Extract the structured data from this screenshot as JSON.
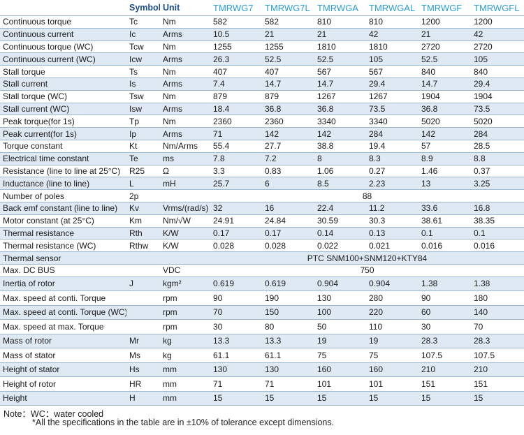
{
  "header": {
    "blank": "",
    "symbol": "Symbol",
    "unit": "Unit",
    "models": [
      "TMRWG7",
      "TMRWG7L",
      "TMRWGA",
      "TMRWGAL",
      "TMRWGF",
      "TMRWGFL"
    ]
  },
  "rows": [
    {
      "name": "Continuous torque",
      "symbol": "Tc",
      "unit": "Nm",
      "values": [
        "582",
        "582",
        "810",
        "810",
        "1200",
        "1200"
      ]
    },
    {
      "name": "Continuous current",
      "symbol": "Ic",
      "unit": "Arms",
      "values": [
        "10.5",
        "21",
        "21",
        "42",
        "21",
        "42"
      ]
    },
    {
      "name": "Continuous torque (WC)",
      "symbol": "Tcw",
      "unit": "Nm",
      "values": [
        "1255",
        "1255",
        "1810",
        "1810",
        "2720",
        "2720"
      ]
    },
    {
      "name": "Continuous current (WC)",
      "symbol": "Icw",
      "unit": "Arms",
      "values": [
        "26.3",
        "52.5",
        "52.5",
        "105",
        "52.5",
        "105"
      ]
    },
    {
      "name": "Stall torque",
      "symbol": "Ts",
      "unit": "Nm",
      "values": [
        "407",
        "407",
        "567",
        "567",
        "840",
        "840"
      ]
    },
    {
      "name": "Stall current",
      "symbol": "Is",
      "unit": "Arms",
      "values": [
        "7.4",
        "14.7",
        "14.7",
        "29.4",
        "14.7",
        "29.4"
      ]
    },
    {
      "name": "Stall torque (WC)",
      "symbol": "Tsw",
      "unit": "Nm",
      "values": [
        "879",
        "879",
        "1267",
        "1267",
        "1904",
        "1904"
      ]
    },
    {
      "name": "Stall current (WC)",
      "symbol": "Isw",
      "unit": "Arms",
      "values": [
        "18.4",
        "36.8",
        "36.8",
        "73.5",
        "36.8",
        "73.5"
      ]
    },
    {
      "name": "Peak torque(for 1s)",
      "symbol": "Tp",
      "unit": "Nm",
      "values": [
        "2360",
        "2360",
        "3340",
        "3340",
        "5020",
        "5020"
      ]
    },
    {
      "name": "Peak current(for 1s)",
      "symbol": "Ip",
      "unit": "Arms",
      "values": [
        "71",
        "142",
        "142",
        "284",
        "142",
        "284"
      ]
    },
    {
      "name": "Torque constant",
      "symbol": "Kt",
      "unit": "Nm/Arms",
      "values": [
        "55.4",
        "27.7",
        "38.8",
        "19.4",
        "57",
        "28.5"
      ]
    },
    {
      "name": "Electrical time constant",
      "symbol": "Te",
      "unit": "ms",
      "values": [
        "7.8",
        "7.2",
        "8",
        "8.3",
        "8.9",
        "8.8"
      ]
    },
    {
      "name": "Resistance (line to line at 25°C)",
      "symbol": "R25",
      "unit": "Ω",
      "values": [
        "3.3",
        "0.83",
        "1.06",
        "0.27",
        "1.46",
        "0.37"
      ]
    },
    {
      "name": "Inductance (line to line)",
      "symbol": "L",
      "unit": "mH",
      "values": [
        "25.7",
        "6",
        "8.5",
        "2.23",
        "13",
        "3.25"
      ]
    },
    {
      "name": "Number of poles",
      "symbol": "2p",
      "unit": "",
      "merged": "88"
    },
    {
      "name": "Back emf constant (line to line)",
      "symbol": "Kv",
      "unit": "Vrms/(rad/s)",
      "values": [
        "32",
        "16",
        "22.4",
        "11.2",
        "33.6",
        "16.8"
      ]
    },
    {
      "name": "Motor constant (at 25°C)",
      "symbol": "Km",
      "unit": "Nm/√W",
      "values": [
        "24.91",
        "24.84",
        "30.59",
        "30.3",
        "38.61",
        "38.35"
      ]
    },
    {
      "name": "Thermal resistance",
      "symbol": "Rth",
      "unit": "K/W",
      "values": [
        "0.17",
        "0.17",
        "0.14",
        "0.13",
        "0.1",
        "0.1"
      ]
    },
    {
      "name": "Thermal resistance (WC)",
      "symbol": "Rthw",
      "unit": "K/W",
      "values": [
        "0.028",
        "0.028",
        "0.022",
        "0.021",
        "0.016",
        "0.016"
      ]
    },
    {
      "name": "Thermal sensor",
      "symbol": "",
      "unit": "",
      "merged": "PTC SNM100+SNM120+KTY84"
    },
    {
      "name": "Max. DC BUS",
      "symbol": "",
      "unit": "VDC",
      "merged": "750"
    },
    {
      "name": "Inertia of rotor",
      "symbol": "J",
      "unit": "kgm²",
      "values": [
        "0.619",
        "0.619",
        "0.904",
        "0.904",
        "1.38",
        "1.38"
      ]
    },
    {
      "name": "Max. speed  at conti. Torque",
      "symbol": "",
      "unit": "rpm",
      "values": [
        "90",
        "190",
        "130",
        "280",
        "90",
        "180"
      ]
    },
    {
      "name": "Max. speed  at conti. Torque (WC)",
      "symbol": "",
      "unit": "rpm",
      "values": [
        "70",
        "150",
        "100",
        "220",
        "60",
        "140"
      ]
    },
    {
      "name": "Max. speed  at max. Torque",
      "symbol": "",
      "unit": "rpm",
      "values": [
        "30",
        "80",
        "50",
        "110",
        "30",
        "70"
      ]
    },
    {
      "name": "Mass of rotor",
      "symbol": "Mr",
      "unit": "kg",
      "values": [
        "13.3",
        "13.3",
        "19",
        "19",
        "28.3",
        "28.3"
      ]
    },
    {
      "name": "Mass of stator",
      "symbol": "Ms",
      "unit": "kg",
      "values": [
        "61.1",
        "61.1",
        "75",
        "75",
        "107.5",
        "107.5"
      ]
    },
    {
      "name": "Height of stator",
      "symbol": "Hs",
      "unit": "mm",
      "values": [
        "130",
        "130",
        "160",
        "160",
        "210",
        "210"
      ]
    },
    {
      "name": "Height of rotor",
      "symbol": "HR",
      "unit": "mm",
      "values": [
        "71",
        "71",
        "101",
        "101",
        "151",
        "151"
      ]
    },
    {
      "name": "Height",
      "symbol": "H",
      "unit": "mm",
      "values": [
        "15",
        "15",
        "15",
        "15",
        "15",
        "15"
      ]
    }
  ],
  "notes": {
    "line1": "Note：WC：water cooled",
    "line2": "*All the specifications in the table are in ±10% of tolerance except dimensions."
  }
}
